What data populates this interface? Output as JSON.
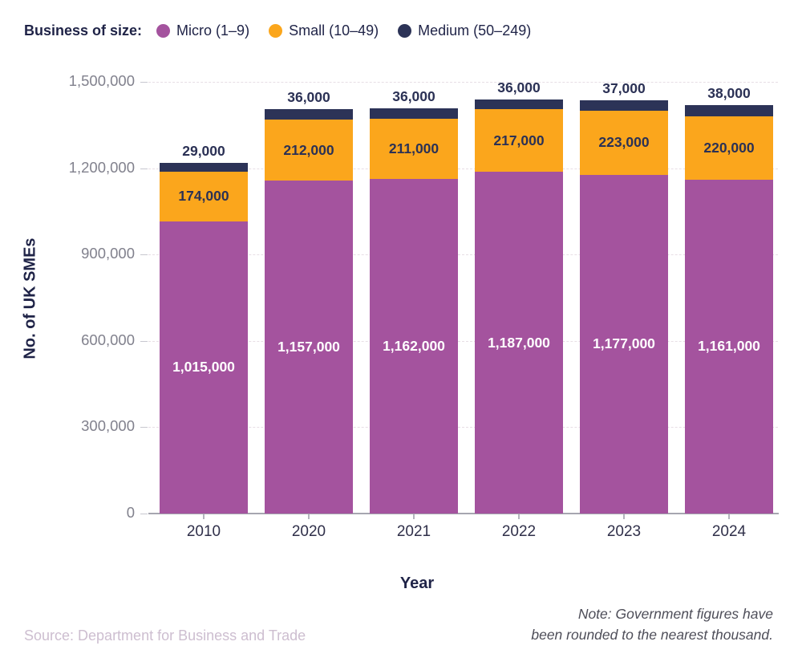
{
  "legend": {
    "title": "Business of size:",
    "items": [
      {
        "label": "Micro (1–9)",
        "color": "#A4539E"
      },
      {
        "label": "Small (10–49)",
        "color": "#FBA61C"
      },
      {
        "label": "Medium (50–249)",
        "color": "#2C3357"
      }
    ]
  },
  "chart_data": {
    "type": "bar",
    "stacked": true,
    "title": "",
    "xlabel": "Year",
    "ylabel": "No. of UK SMEs",
    "categories": [
      "2010",
      "2020",
      "2021",
      "2022",
      "2023",
      "2024"
    ],
    "series": [
      {
        "name": "Micro (1–9)",
        "color": "#A4539E",
        "label_color": "#FFFFFF",
        "values": [
          1015000,
          1157000,
          1162000,
          1187000,
          1177000,
          1161000
        ]
      },
      {
        "name": "Small (10–49)",
        "color": "#FBA61C",
        "label_color": "#2B3155",
        "values": [
          174000,
          212000,
          211000,
          217000,
          223000,
          220000
        ]
      },
      {
        "name": "Medium (50–249)",
        "color": "#2C3357",
        "label_color": "#2B3155",
        "values": [
          29000,
          36000,
          36000,
          36000,
          37000,
          38000
        ]
      }
    ],
    "ylim": [
      0,
      1500000
    ],
    "yticks": [
      0,
      300000,
      600000,
      900000,
      1200000,
      1500000
    ],
    "ytick_labels": [
      "0",
      "300,000",
      "600,000",
      "900,000",
      "1,200,000",
      "1,500,000"
    ],
    "grid": "horizontal dashed",
    "legend_position": "top-left",
    "gridline_color": "#E7DEE5",
    "axis_label_color": "#81818D"
  },
  "footer": {
    "source": "Source: Department for Business and Trade",
    "note_line1": "Note: Government figures have",
    "note_line2": "been rounded to the nearest thousand."
  }
}
